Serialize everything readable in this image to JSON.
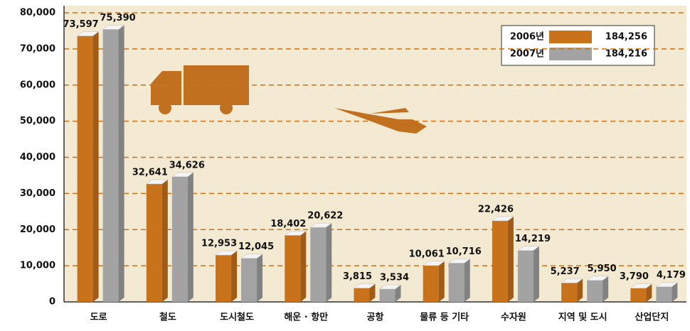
{
  "chart_data": {
    "type": "bar",
    "categories": [
      "도로",
      "철도",
      "도시철도",
      "해운 · 항만",
      "공항",
      "물류 등 기타",
      "수자원",
      "지역 및 도시",
      "산업단지"
    ],
    "series": [
      {
        "name": "2006년",
        "color": "#c8731c",
        "total": "184,256",
        "values": [
          73597,
          32641,
          12953,
          18402,
          3815,
          10061,
          22426,
          5237,
          3790
        ],
        "value_labels": [
          "73,597",
          "32,641",
          "12,953",
          "18,402",
          "3,815",
          "10,061",
          "22,426",
          "5,237",
          "3,790"
        ]
      },
      {
        "name": "2007년",
        "color": "#a3a3a3",
        "total": "184,216",
        "values": [
          75390,
          34626,
          12045,
          20622,
          3534,
          10716,
          14219,
          5950,
          4179
        ],
        "value_labels": [
          "75,390",
          "34,626",
          "12,045",
          "20,622",
          "3,534",
          "10,716",
          "14,219",
          "5,950",
          "4,179"
        ]
      }
    ],
    "ylim": [
      0,
      80000
    ],
    "yticks": [
      0,
      {
        "value": 10000,
        "label": "10,000"
      },
      {
        "value": 20000,
        "label": "20,000"
      },
      {
        "value": 30000,
        "label": "30,000"
      },
      {
        "value": 40000,
        "label": "40,000"
      },
      {
        "value": 50000,
        "label": "50,000"
      },
      {
        "value": 60000,
        "label": "60,000"
      },
      {
        "value": 70000,
        "label": "70,000"
      },
      {
        "value": 80000,
        "label": "80,000"
      }
    ],
    "grid": true
  }
}
